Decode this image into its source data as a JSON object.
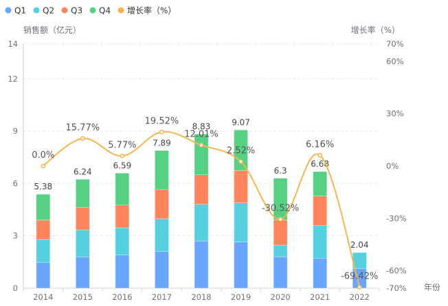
{
  "chart_data": {
    "type": "bar",
    "subtype": "stacked-bar-with-line",
    "title": "",
    "categories": [
      "2014",
      "2015",
      "2016",
      "2017",
      "2018",
      "2019",
      "2020",
      "2021",
      "2022"
    ],
    "xlabel": "年份",
    "ylabel": "销售额（亿元）",
    "y2label": "增长率（%）",
    "ylim": [
      0,
      14
    ],
    "yticks": [
      0,
      3,
      6,
      9,
      12,
      14
    ],
    "y2lim": [
      -70,
      70
    ],
    "y2ticks": [
      -70,
      -60,
      -30,
      0,
      30,
      60,
      70
    ],
    "y2tick_labels": [
      "-70%",
      "-60%",
      "-30%",
      "0%",
      "30%",
      "60%",
      "70%"
    ],
    "grid": true,
    "legend_position": "top-left",
    "series": [
      {
        "name": "Q1",
        "type": "bar",
        "stack": "total",
        "color": "#6aa5ff",
        "values": [
          1.47,
          1.78,
          1.9,
          2.1,
          2.7,
          2.65,
          1.8,
          1.72,
          1.12
        ]
      },
      {
        "name": "Q2",
        "type": "bar",
        "stack": "total",
        "color": "#56d0de",
        "values": [
          1.32,
          1.56,
          1.56,
          1.88,
          2.11,
          2.24,
          0.67,
          1.87,
          0.92
        ]
      },
      {
        "name": "Q3",
        "type": "bar",
        "stack": "total",
        "color": "#ff855c",
        "values": [
          1.11,
          1.29,
          1.3,
          1.68,
          1.69,
          1.86,
          1.44,
          1.69,
          0
        ]
      },
      {
        "name": "Q4",
        "type": "bar",
        "stack": "total",
        "color": "#56d083",
        "values": [
          1.48,
          1.61,
          1.83,
          2.23,
          2.33,
          2.32,
          2.39,
          1.4,
          0
        ]
      },
      {
        "name": "增长率（%）",
        "type": "line",
        "axis": "right",
        "smooth": true,
        "color": "#f6b54f",
        "values": [
          0.0,
          15.77,
          5.77,
          19.52,
          12.01,
          2.52,
          -30.52,
          6.16,
          -69.42
        ],
        "labels": [
          "0.0%",
          "15.77%",
          "5.77%",
          "19.52%",
          "12.01%",
          "2.52%",
          "-30.52%",
          "6.16%",
          "-69.42%"
        ]
      }
    ],
    "totals": [
      5.38,
      6.24,
      6.59,
      7.89,
      8.83,
      9.07,
      6.3,
      6.68,
      2.04
    ],
    "total_labels": [
      "5.38",
      "6.24",
      "6.59",
      "7.89",
      "8.83",
      "9.07",
      "6.3",
      "6.68",
      "2.04"
    ]
  },
  "colors": {
    "axis": "#cdd3dc",
    "grid": "#e0e6f1",
    "text": "#6e7079"
  }
}
